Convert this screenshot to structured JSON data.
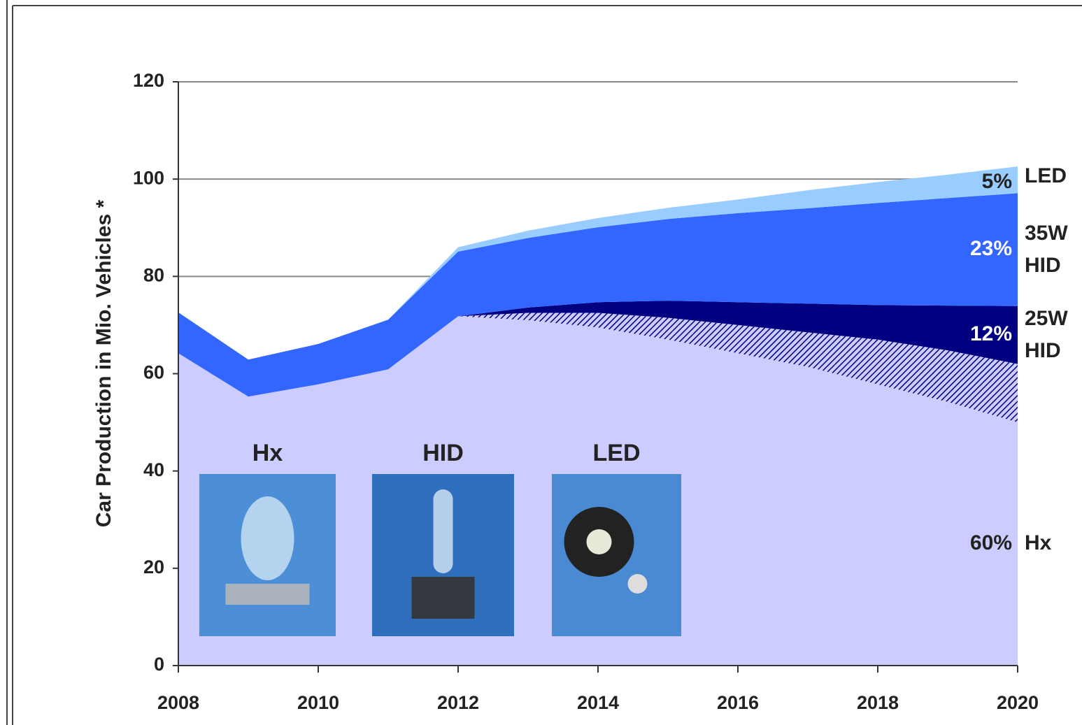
{
  "chart_data": {
    "type": "stacked_area",
    "y_label": "Car Production in Mio. Vehicles *",
    "x": [
      2008,
      2009,
      2010,
      2011,
      2012,
      2013,
      2014,
      2015,
      2016,
      2017,
      2018,
      2019,
      2020
    ],
    "xlim": [
      2008,
      2020
    ],
    "xticks": [
      2008,
      2010,
      2012,
      2014,
      2016,
      2018,
      2020
    ],
    "ylim": [
      0,
      120
    ],
    "yticks": [
      0,
      20,
      40,
      60,
      80,
      100,
      120
    ],
    "grid": true,
    "series": [
      {
        "name": "Hx",
        "share": "60%",
        "color": "#ccccff",
        "values": [
          64.2,
          55.3,
          57.8,
          60.9,
          71.8,
          71,
          69.5,
          67,
          64.2,
          61.4,
          57.8,
          54.2,
          50
        ]
      },
      {
        "color": "#000080",
        "pattern": "hatch",
        "values": [
          0,
          0,
          0,
          0,
          0,
          1.5,
          3,
          4.5,
          5.8,
          7.1,
          9.2,
          10.6,
          12
        ]
      },
      {
        "name": [
          "25W",
          "HID"
        ],
        "share": "12%",
        "color": "#000080",
        "values": [
          0,
          0,
          0,
          0,
          0,
          1.1,
          2.2,
          3.5,
          4.7,
          5.9,
          7.1,
          9.2,
          11.9
        ]
      },
      {
        "name": [
          "35W",
          "HID"
        ],
        "share": "23%",
        "color": "#3366ff",
        "values": [
          8.4,
          7.6,
          8.3,
          10.2,
          13.3,
          14.3,
          15.4,
          16.8,
          18.3,
          19.6,
          21,
          22.1,
          23.2
        ]
      },
      {
        "name": "LED",
        "share": "5%",
        "color": "#99ccff",
        "values": [
          0,
          0,
          0,
          0,
          0.9,
          1.5,
          1.9,
          2.3,
          2.8,
          3.7,
          4.3,
          4.8,
          5.5
        ]
      }
    ],
    "photo_captions": [
      "Hx",
      "HID",
      "LED"
    ]
  }
}
